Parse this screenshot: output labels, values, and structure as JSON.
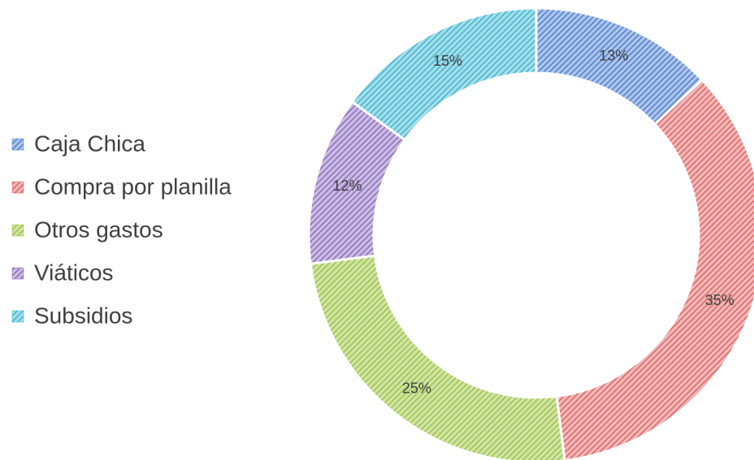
{
  "chart_data": {
    "type": "donut",
    "categories": [
      "Caja Chica",
      "Compra por planilla",
      "Otros gastos",
      "Viáticos",
      "Subsidios"
    ],
    "values": [
      13,
      35,
      25,
      12,
      15
    ],
    "value_labels": [
      "13%",
      "35%",
      "25%",
      "12%",
      "15%"
    ],
    "colors": [
      "#4f81d0",
      "#e06666",
      "#9bc444",
      "#8e6fbf",
      "#3fb6d0"
    ],
    "legend": "left"
  }
}
